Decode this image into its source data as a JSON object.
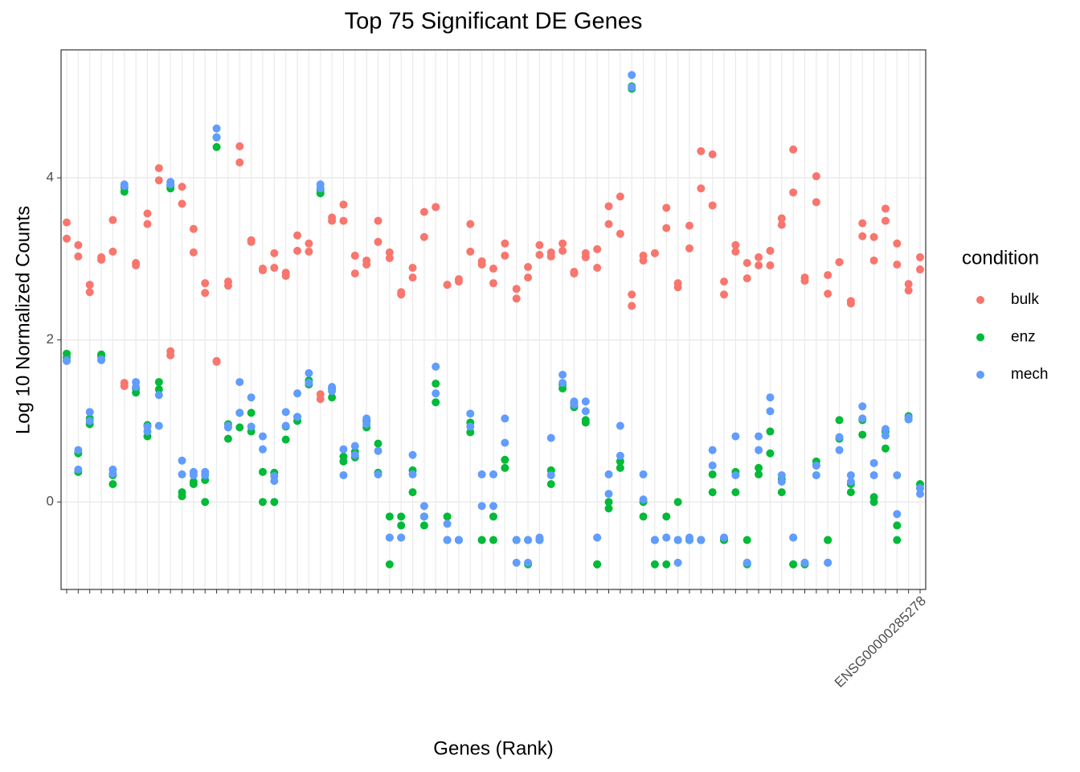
{
  "chart_data": {
    "type": "scatter",
    "title": "Top 75 Significant DE Genes",
    "x_label": "Genes (Rank)",
    "y_label": "Log 10 Normalized Counts",
    "legend_title": "condition",
    "legend_position": "right",
    "grid": true,
    "categories": [
      null,
      null,
      null,
      null,
      null,
      null,
      null,
      null,
      null,
      null,
      null,
      null,
      null,
      null,
      null,
      null,
      null,
      null,
      null,
      null,
      null,
      null,
      null,
      null,
      null,
      null,
      null,
      null,
      null,
      null,
      null,
      null,
      null,
      null,
      null,
      null,
      null,
      null,
      null,
      null,
      null,
      null,
      null,
      null,
      null,
      null,
      null,
      null,
      null,
      null,
      null,
      null,
      null,
      null,
      null,
      null,
      null,
      null,
      null,
      null,
      null,
      null,
      null,
      null,
      null,
      null,
      null,
      null,
      null,
      null,
      null,
      null,
      null,
      null,
      "ENSG00000285278"
    ],
    "ylim": [
      -1.08,
      5.58
    ],
    "yticks": [
      0,
      2,
      4
    ],
    "series": [
      {
        "name": "bulk",
        "color": "#F8766D",
        "values": [
          [
            3.45,
            3.25
          ],
          [
            3.17,
            3.03
          ],
          [
            2.68,
            2.59
          ],
          [
            3.02,
            2.99
          ],
          [
            3.48,
            3.09
          ],
          [
            1.47,
            1.43
          ],
          [
            2.95,
            2.92
          ],
          [
            3.56,
            3.43
          ],
          [
            4.12,
            3.97
          ],
          [
            1.86,
            1.81
          ],
          [
            3.89,
            3.68
          ],
          [
            3.37,
            3.08
          ],
          [
            2.7,
            2.58
          ],
          [
            1.74,
            1.73
          ],
          [
            2.72,
            2.67
          ],
          [
            4.39,
            4.19
          ],
          [
            3.23,
            3.21
          ],
          [
            2.88,
            2.86
          ],
          [
            3.07,
            2.89
          ],
          [
            2.83,
            2.79
          ],
          [
            3.29,
            3.1
          ],
          [
            3.19,
            3.09
          ],
          [
            1.33,
            1.27
          ],
          [
            3.51,
            3.47
          ],
          [
            3.67,
            3.47
          ],
          [
            3.04,
            2.82
          ],
          [
            2.98,
            2.93
          ],
          [
            3.47,
            3.21
          ],
          [
            3.08,
            3.01
          ],
          [
            2.59,
            2.56
          ],
          [
            2.89,
            2.77
          ],
          [
            3.58,
            3.27
          ],
          [
            3.64,
            3.64
          ],
          [
            2.68,
            2.68
          ],
          [
            2.75,
            2.72
          ],
          [
            3.43,
            3.09
          ],
          [
            2.97,
            2.93
          ],
          [
            2.88,
            2.7
          ],
          [
            3.19,
            3.04
          ],
          [
            2.63,
            2.51
          ],
          [
            2.9,
            2.77
          ],
          [
            3.17,
            3.05
          ],
          [
            3.08,
            3.03
          ],
          [
            3.19,
            3.1
          ],
          [
            2.84,
            2.82
          ],
          [
            3.07,
            3.02
          ],
          [
            3.12,
            2.89
          ],
          [
            3.65,
            3.43
          ],
          [
            3.77,
            3.31
          ],
          [
            2.56,
            2.42
          ],
          [
            3.04,
            2.98
          ],
          [
            3.07,
            3.07
          ],
          [
            3.63,
            3.38
          ],
          [
            2.7,
            2.65
          ],
          [
            3.41,
            3.13
          ],
          [
            4.33,
            3.87
          ],
          [
            4.29,
            3.66
          ],
          [
            2.72,
            2.56
          ],
          [
            3.17,
            3.09
          ],
          [
            2.95,
            2.76
          ],
          [
            3.02,
            2.92
          ],
          [
            3.1,
            2.92
          ],
          [
            3.5,
            3.42
          ],
          [
            4.35,
            3.82
          ],
          [
            2.77,
            2.73
          ],
          [
            4.02,
            3.7
          ],
          [
            2.8,
            2.57
          ],
          [
            2.96,
            2.96
          ],
          [
            2.48,
            2.45
          ],
          [
            3.44,
            3.28
          ],
          [
            3.27,
            2.98
          ],
          [
            3.62,
            3.47
          ],
          [
            3.19,
            2.93
          ],
          [
            2.69,
            2.61
          ],
          [
            3.02,
            2.87
          ]
        ]
      },
      {
        "name": "enz",
        "color": "#00BA38",
        "values": [
          [
            1.83,
            1.78
          ],
          [
            0.6,
            0.37
          ],
          [
            1.03,
            0.96
          ],
          [
            1.82,
            1.8
          ],
          [
            0.33,
            0.22
          ],
          [
            3.88,
            3.83
          ],
          [
            1.4,
            1.35
          ],
          [
            0.95,
            0.81
          ],
          [
            1.48,
            1.39
          ],
          [
            3.9,
            3.87
          ],
          [
            0.12,
            0.07
          ],
          [
            0.25,
            0.22
          ],
          [
            0.27,
            0.0
          ],
          [
            4.5,
            4.38
          ],
          [
            0.96,
            0.78
          ],
          [
            1.1,
            0.92
          ],
          [
            1.1,
            0.87
          ],
          [
            0.37,
            0.0
          ],
          [
            0.36,
            0.0
          ],
          [
            0.93,
            0.77
          ],
          [
            1.05,
            1.0
          ],
          [
            1.5,
            1.45
          ],
          [
            3.85,
            3.81
          ],
          [
            1.4,
            1.29
          ],
          [
            0.56,
            0.5
          ],
          [
            0.62,
            0.55
          ],
          [
            1.0,
            0.92
          ],
          [
            0.72,
            0.36
          ],
          [
            -0.18,
            -0.77
          ],
          [
            -0.18,
            -0.29
          ],
          [
            0.39,
            0.12
          ],
          [
            -0.18,
            -0.29
          ],
          [
            1.46,
            1.23
          ],
          [
            -0.18,
            -0.47
          ],
          [
            -0.47,
            -0.47
          ],
          [
            0.98,
            0.86
          ],
          [
            -0.47,
            -0.47
          ],
          [
            -0.18,
            -0.47
          ],
          [
            0.52,
            0.42
          ],
          [
            -0.47,
            -0.47
          ],
          [
            -0.47,
            -0.77
          ],
          [
            -0.47,
            -0.47
          ],
          [
            0.39,
            0.22
          ],
          [
            1.45,
            1.4
          ],
          [
            1.22,
            1.17
          ],
          [
            1.01,
            0.98
          ],
          [
            -0.77,
            -0.77
          ],
          [
            0.0,
            -0.08
          ],
          [
            0.5,
            0.42
          ],
          [
            5.13,
            5.1
          ],
          [
            0.0,
            -0.18
          ],
          [
            -0.77,
            -0.47
          ],
          [
            -0.18,
            -0.77
          ],
          [
            0.0,
            -0.47
          ],
          [
            -0.47,
            -0.47
          ],
          [
            -0.47,
            -0.47
          ],
          [
            0.34,
            0.12
          ],
          [
            -0.47,
            -0.47
          ],
          [
            0.37,
            0.12
          ],
          [
            -0.47,
            -0.77
          ],
          [
            0.42,
            0.34
          ],
          [
            0.87,
            0.6
          ],
          [
            0.28,
            0.12
          ],
          [
            -0.77,
            -0.77
          ],
          [
            -0.77,
            -0.77
          ],
          [
            0.5,
            0.45
          ],
          [
            -0.47,
            -0.47
          ],
          [
            1.01,
            0.78
          ],
          [
            0.22,
            0.12
          ],
          [
            1.01,
            0.83
          ],
          [
            0.06,
            0.0
          ],
          [
            0.87,
            0.66
          ],
          [
            -0.29,
            -0.47
          ],
          [
            1.06,
            1.02
          ],
          [
            0.22,
            0.17
          ]
        ]
      },
      {
        "name": "mech",
        "color": "#619CFF",
        "values": [
          [
            1.75,
            1.74
          ],
          [
            0.64,
            0.4
          ],
          [
            1.11,
            1.0
          ],
          [
            1.76,
            1.75
          ],
          [
            0.4,
            0.35
          ],
          [
            3.92,
            3.9
          ],
          [
            1.48,
            1.42
          ],
          [
            0.93,
            0.87
          ],
          [
            1.32,
            0.94
          ],
          [
            3.95,
            3.92
          ],
          [
            0.51,
            0.34
          ],
          [
            0.37,
            0.33
          ],
          [
            0.37,
            0.33
          ],
          [
            4.61,
            4.5
          ],
          [
            0.94,
            0.92
          ],
          [
            1.48,
            1.1
          ],
          [
            1.29,
            0.93
          ],
          [
            0.81,
            0.65
          ],
          [
            0.32,
            0.26
          ],
          [
            1.11,
            0.94
          ],
          [
            1.34,
            1.05
          ],
          [
            1.59,
            1.47
          ],
          [
            3.92,
            3.87
          ],
          [
            1.42,
            1.37
          ],
          [
            0.65,
            0.33
          ],
          [
            0.69,
            0.58
          ],
          [
            1.03,
            0.96
          ],
          [
            0.63,
            0.34
          ],
          [
            -0.44,
            -0.44
          ],
          [
            -0.44,
            -0.44
          ],
          [
            0.58,
            0.34
          ],
          [
            -0.05,
            -0.18
          ],
          [
            1.67,
            1.34
          ],
          [
            -0.27,
            -0.47
          ],
          [
            -0.47,
            -0.47
          ],
          [
            1.09,
            0.93
          ],
          [
            0.34,
            -0.05
          ],
          [
            0.34,
            -0.05
          ],
          [
            1.03,
            0.73
          ],
          [
            -0.47,
            -0.75
          ],
          [
            -0.47,
            -0.75
          ],
          [
            -0.44,
            -0.47
          ],
          [
            0.79,
            0.33
          ],
          [
            1.57,
            1.47
          ],
          [
            1.24,
            1.2
          ],
          [
            1.24,
            1.12
          ],
          [
            -0.44,
            -0.44
          ],
          [
            0.34,
            0.1
          ],
          [
            0.94,
            0.57
          ],
          [
            5.27,
            5.12
          ],
          [
            0.34,
            0.03
          ],
          [
            -0.47,
            -0.47
          ],
          [
            -0.44,
            -0.44
          ],
          [
            -0.47,
            -0.75
          ],
          [
            -0.44,
            -0.47
          ],
          [
            -0.47,
            -0.47
          ],
          [
            0.64,
            0.45
          ],
          [
            -0.44,
            -0.44
          ],
          [
            0.81,
            0.33
          ],
          [
            -0.75,
            -0.75
          ],
          [
            0.81,
            0.64
          ],
          [
            1.29,
            1.12
          ],
          [
            0.33,
            0.25
          ],
          [
            -0.44,
            -0.44
          ],
          [
            -0.75,
            -0.75
          ],
          [
            0.45,
            0.33
          ],
          [
            -0.75,
            -0.75
          ],
          [
            0.8,
            0.64
          ],
          [
            0.33,
            0.25
          ],
          [
            1.18,
            1.03
          ],
          [
            0.48,
            0.33
          ],
          [
            0.9,
            0.82
          ],
          [
            0.33,
            -0.15
          ],
          [
            1.04,
            1.02
          ],
          [
            0.17,
            0.1
          ]
        ]
      }
    ]
  }
}
